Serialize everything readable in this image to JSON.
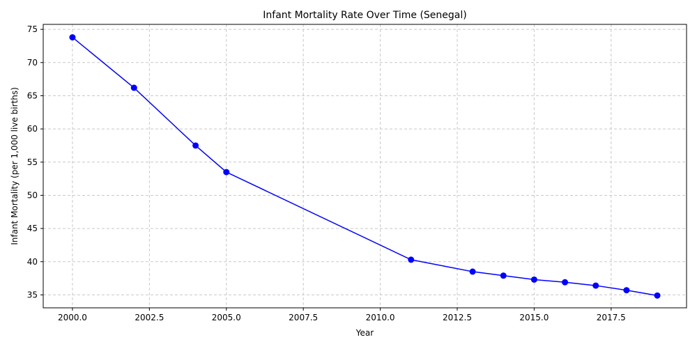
{
  "chart_data": {
    "type": "line",
    "title": "Infant Mortality Rate Over Time (Senegal)",
    "xlabel": "Year",
    "ylabel": "Infant Mortality (per 1,000 live births)",
    "xlim": [
      1999.05,
      2019.95
    ],
    "ylim": [
      33.05,
      75.75
    ],
    "xticks": [
      2000.0,
      2002.5,
      2005.0,
      2007.5,
      2010.0,
      2012.5,
      2015.0,
      2017.5
    ],
    "xtick_labels": [
      "2000.0",
      "2002.5",
      "2005.0",
      "2007.5",
      "2010.0",
      "2012.5",
      "2015.0",
      "2017.5"
    ],
    "yticks": [
      35,
      40,
      45,
      50,
      55,
      60,
      65,
      70,
      75
    ],
    "ytick_labels": [
      "35",
      "40",
      "45",
      "50",
      "55",
      "60",
      "65",
      "70",
      "75"
    ],
    "grid": true,
    "series": [
      {
        "color": "#0000ff",
        "marker": "circle",
        "x": [
          2000,
          2002,
          2004,
          2005,
          2011,
          2013,
          2014,
          2015,
          2016,
          2017,
          2018,
          2019
        ],
        "y": [
          73.8,
          66.2,
          57.5,
          53.5,
          40.3,
          38.5,
          37.9,
          37.3,
          36.9,
          36.4,
          35.7,
          34.9
        ]
      }
    ]
  }
}
